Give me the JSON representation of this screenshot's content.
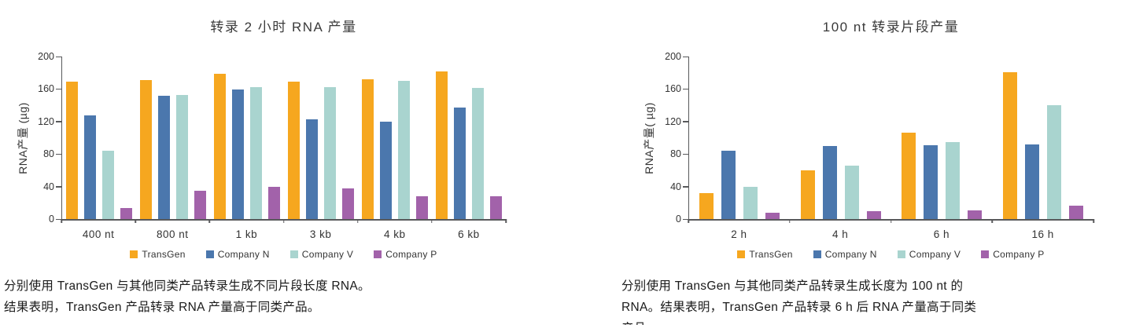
{
  "chart_data": [
    {
      "type": "bar",
      "title": "转录 2 小时 RNA 产量",
      "ylabel": "RNA产量 (µg)",
      "ylim": [
        0,
        200
      ],
      "yticks": [
        0,
        40,
        80,
        120,
        160,
        200
      ],
      "grid": false,
      "legend_position": "bottom",
      "categories": [
        "400 nt",
        "800 nt",
        "1 kb",
        "3 kb",
        "4 kb",
        "6 kb"
      ],
      "series": [
        {
          "name": "TransGen",
          "color": "#F6A71F",
          "values": [
            169,
            171,
            179,
            169,
            172,
            182
          ]
        },
        {
          "name": "Company N",
          "color": "#4B77AD",
          "values": [
            128,
            152,
            159,
            123,
            120,
            137
          ]
        },
        {
          "name": "Company V",
          "color": "#A9D4CF",
          "values": [
            84,
            153,
            162,
            162,
            170,
            161
          ]
        },
        {
          "name": "Company P",
          "color": "#A262AA",
          "values": [
            14,
            35,
            40,
            38,
            28,
            28
          ]
        }
      ],
      "caption": "分别使用 TransGen 与其他同类产品转录生成不同片段长度 RNA。\n结果表明，TransGen 产品转录 RNA 产量高于同类产品。"
    },
    {
      "type": "bar",
      "title": "100 nt 转录片段产量",
      "ylabel": "RNA产量( µg)",
      "ylim": [
        0,
        200
      ],
      "yticks": [
        0,
        40,
        80,
        120,
        160,
        200
      ],
      "grid": false,
      "legend_position": "bottom",
      "categories": [
        "2 h",
        "4 h",
        "6 h",
        "16 h"
      ],
      "series": [
        {
          "name": "TransGen",
          "color": "#F6A71F",
          "values": [
            32,
            60,
            106,
            181
          ]
        },
        {
          "name": "Company N",
          "color": "#4B77AD",
          "values": [
            84,
            90,
            91,
            92
          ]
        },
        {
          "name": "Company V",
          "color": "#A9D4CF",
          "values": [
            40,
            66,
            95,
            140
          ]
        },
        {
          "name": "Company P",
          "color": "#A262AA",
          "values": [
            8,
            10,
            11,
            16
          ]
        }
      ],
      "caption": "分别使用 TransGen 与其他同类产品转录生成长度为 100 nt 的\nRNA。结果表明，TransGen 产品转录 6 h 后 RNA 产量高于同类\n产品。"
    }
  ],
  "colors": {
    "axis": "#58595B",
    "title_text": "#3A3A3A",
    "tick_text": "#333333",
    "caption_text": "#1A1A1A"
  }
}
